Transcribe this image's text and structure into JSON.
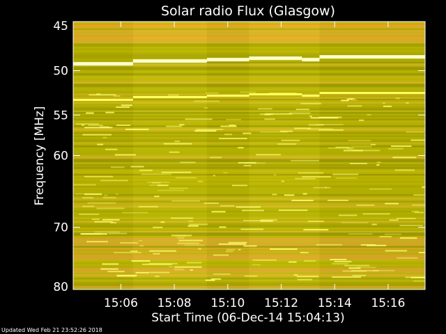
{
  "chart_data": {
    "type": "heatmap",
    "title": "Solar radio Flux (Glasgow)",
    "xlabel": "Start Time (06-Dec-14 15:04:13)",
    "ylabel": "Frequency [MHz]",
    "x_unit": "time (HH:MM)",
    "xlim": [
      "15:04:13",
      "15:17:23"
    ],
    "x_ticks": [
      "15:06",
      "15:08",
      "15:10",
      "15:12",
      "15:14",
      "15:16"
    ],
    "ylim": [
      45,
      80
    ],
    "y_ticks": [
      45,
      50,
      55,
      60,
      70,
      80
    ],
    "y_scale": "log",
    "y_inverted": true,
    "colormap": [
      "#8f8f00",
      "#b0b000",
      "#d6c000",
      "#f0a020",
      "#ffff80"
    ],
    "bright_bands_mhz": [
      48.8,
      52.8
    ],
    "grid": false
  },
  "footer": "Updated Wed Feb 21 23:52:26 2018"
}
